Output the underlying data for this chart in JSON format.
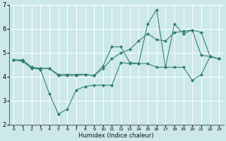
{
  "xlabel": "Humidex (Indice chaleur)",
  "bg_color": "#cce8e8",
  "grid_color": "#ffffff",
  "line_color": "#2e7d6e",
  "marker_color": "#2e7d6e",
  "xlim": [
    -0.5,
    23.5
  ],
  "ylim": [
    2.0,
    7.0
  ],
  "yticks": [
    2,
    3,
    4,
    5,
    6,
    7
  ],
  "xticks": [
    0,
    1,
    2,
    3,
    4,
    5,
    6,
    7,
    8,
    9,
    10,
    11,
    12,
    13,
    14,
    15,
    16,
    17,
    18,
    19,
    20,
    21,
    22,
    23
  ],
  "series": [
    [
      4.7,
      4.7,
      4.4,
      4.3,
      3.3,
      2.45,
      2.65,
      3.45,
      3.6,
      3.65,
      3.65,
      3.65,
      4.6,
      4.55,
      4.55,
      4.55,
      4.4,
      4.4,
      4.4,
      4.4,
      3.85,
      4.1,
      4.85,
      4.75
    ],
    [
      4.7,
      4.7,
      4.4,
      4.35,
      4.35,
      4.1,
      4.1,
      4.1,
      4.1,
      4.05,
      4.45,
      5.25,
      5.25,
      4.6,
      4.55,
      6.2,
      6.8,
      4.4,
      6.2,
      5.8,
      5.95,
      4.9,
      4.85,
      4.75
    ],
    [
      4.7,
      4.65,
      4.35,
      4.35,
      4.35,
      4.05,
      4.05,
      4.05,
      4.1,
      4.05,
      4.35,
      4.75,
      5.0,
      5.15,
      5.5,
      5.8,
      5.55,
      5.5,
      5.85,
      5.9,
      5.95,
      5.85,
      4.85,
      4.75
    ]
  ]
}
